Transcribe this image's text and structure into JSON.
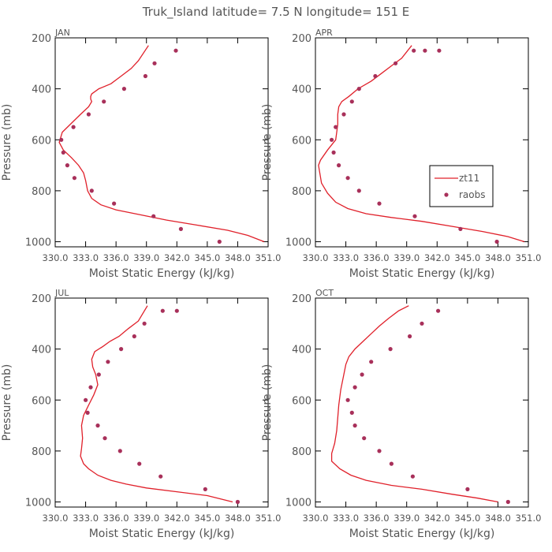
{
  "title": "Truk_Island  latitude= 7.5 N longitude= 151 E",
  "colors": {
    "model": "#e0202a",
    "obs": "#a8305a",
    "frame": "#000000",
    "text": "#555555"
  },
  "chart_data": [
    {
      "type": "line",
      "panel": "JAN",
      "xlabel": "Moist Static Energy (kJ/kg)",
      "ylabel": "Pressure (mb)",
      "xlim": [
        330.0,
        351.0
      ],
      "ylim": [
        1020,
        200
      ],
      "xticks": [
        "330.0",
        "333.0",
        "336.0",
        "339.0",
        "342.0",
        "345.0",
        "348.0",
        "351.0"
      ],
      "yticks": [
        200,
        400,
        600,
        800,
        1000
      ],
      "legend": null,
      "series": [
        {
          "name": "zt11",
          "style": "line",
          "x": [
            350.6,
            349.0,
            347.0,
            344.0,
            341.0,
            338.5,
            336.0,
            334.5,
            333.6,
            333.2,
            333.0,
            332.8,
            332.3,
            331.6,
            330.8,
            330.4,
            330.7,
            332.5,
            333.3,
            333.6,
            333.5,
            333.5,
            333.6,
            334.3,
            335.5,
            336.5,
            337.5,
            338.2,
            339.2
          ],
          "y": [
            1000,
            975,
            955,
            935,
            915,
            895,
            875,
            855,
            830,
            800,
            760,
            730,
            700,
            670,
            640,
            610,
            570,
            500,
            470,
            450,
            440,
            430,
            420,
            400,
            380,
            350,
            320,
            290,
            230
          ]
        },
        {
          "name": "raobs",
          "style": "markers",
          "x": [
            346.2,
            342.4,
            339.7,
            335.8,
            333.6,
            331.9,
            331.2,
            330.8,
            330.6,
            331.8,
            333.3,
            334.8,
            336.8,
            338.9,
            339.8,
            341.9
          ],
          "y": [
            1000,
            950,
            900,
            850,
            800,
            750,
            700,
            650,
            600,
            550,
            500,
            450,
            400,
            350,
            300,
            250
          ]
        }
      ]
    },
    {
      "type": "line",
      "panel": "APR",
      "xlabel": "Moist Static Energy (kJ/kg)",
      "ylabel": "Pressure (mb)",
      "xlim": [
        330.0,
        351.0
      ],
      "ylim": [
        1020,
        200
      ],
      "xticks": [
        "330.0",
        "333.0",
        "336.0",
        "339.0",
        "342.0",
        "345.0",
        "348.0",
        "351.0"
      ],
      "yticks": [
        200,
        400,
        600,
        800,
        1000
      ],
      "legend": "right",
      "series": [
        {
          "name": "zt11",
          "style": "line",
          "x": [
            350.6,
            349.0,
            346.5,
            343.5,
            340.5,
            337.5,
            335.0,
            333.2,
            332.0,
            331.2,
            330.6,
            330.3,
            330.5,
            331.2,
            332.0,
            332.2,
            332.2,
            332.3,
            332.6,
            333.3,
            334.2,
            335.5,
            336.5,
            337.5,
            338.5,
            339.5
          ],
          "y": [
            1000,
            980,
            960,
            940,
            920,
            905,
            890,
            870,
            845,
            810,
            770,
            700,
            680,
            640,
            600,
            540,
            500,
            470,
            450,
            430,
            400,
            370,
            340,
            310,
            280,
            230
          ]
        },
        {
          "name": "raobs",
          "style": "markers",
          "x": [
            347.9,
            344.3,
            339.8,
            336.3,
            334.3,
            333.2,
            332.3,
            331.8,
            331.6,
            332.0,
            332.8,
            333.6,
            334.3,
            335.9,
            337.9,
            339.7,
            340.8,
            342.2
          ],
          "y": [
            1000,
            950,
            900,
            850,
            800,
            750,
            700,
            650,
            600,
            550,
            500,
            450,
            400,
            350,
            300,
            250,
            250,
            250
          ]
        }
      ]
    },
    {
      "type": "line",
      "panel": "JUL",
      "xlabel": "Moist Static Energy (kJ/kg)",
      "ylabel": "Pressure (mb)",
      "xlim": [
        330.0,
        351.0
      ],
      "ylim": [
        1020,
        200
      ],
      "xticks": [
        "330.0",
        "333.0",
        "336.0",
        "339.0",
        "342.0",
        "345.0",
        "348.0",
        "351.0"
      ],
      "yticks": [
        200,
        400,
        600,
        800,
        1000
      ],
      "legend": null,
      "series": [
        {
          "name": "zt11",
          "style": "line",
          "x": [
            347.5,
            345.0,
            342.0,
            339.0,
            337.0,
            335.5,
            334.2,
            333.3,
            332.8,
            332.5,
            332.6,
            332.7,
            332.6,
            332.8,
            333.3,
            333.8,
            334.2,
            334.0,
            333.7,
            333.6,
            333.9,
            334.7,
            335.4,
            336.3,
            337.2,
            338.2,
            339.1
          ],
          "y": [
            1000,
            975,
            960,
            945,
            930,
            915,
            895,
            870,
            850,
            820,
            790,
            750,
            700,
            660,
            620,
            580,
            540,
            500,
            470,
            440,
            410,
            390,
            370,
            350,
            320,
            290,
            230
          ]
        },
        {
          "name": "raobs",
          "style": "markers",
          "x": [
            348.0,
            344.8,
            340.4,
            338.3,
            336.4,
            334.9,
            334.2,
            333.2,
            333.0,
            333.5,
            334.3,
            335.2,
            336.5,
            337.8,
            338.8,
            340.6,
            342.0
          ],
          "y": [
            1000,
            950,
            900,
            850,
            800,
            750,
            700,
            650,
            600,
            550,
            500,
            450,
            400,
            350,
            300,
            250,
            250
          ]
        }
      ]
    },
    {
      "type": "line",
      "panel": "OCT",
      "xlabel": "Moist Static Energy (kJ/kg)",
      "ylabel": "Pressure (mb)",
      "xlim": [
        330.0,
        351.0
      ],
      "ylim": [
        1020,
        200
      ],
      "xticks": [
        "330.0",
        "333.0",
        "336.0",
        "339.0",
        "342.0",
        "345.0",
        "348.0",
        "351.0"
      ],
      "yticks": [
        200,
        400,
        600,
        800,
        1000
      ],
      "legend": null,
      "series": [
        {
          "name": "zt11",
          "style": "line",
          "x": [
            348.0,
            346.0,
            343.5,
            340.5,
            337.5,
            335.0,
            333.5,
            332.4,
            331.6,
            331.6,
            331.9,
            332.1,
            332.2,
            332.3,
            332.5,
            332.8,
            333.0,
            333.3,
            333.9,
            334.7,
            335.5,
            336.3,
            337.2,
            338.2,
            339.2
          ],
          "y": [
            1000,
            985,
            970,
            950,
            935,
            915,
            895,
            870,
            840,
            810,
            770,
            720,
            670,
            620,
            560,
            500,
            460,
            430,
            400,
            370,
            340,
            310,
            280,
            250,
            230
          ]
        },
        {
          "name": "raobs",
          "style": "markers",
          "x": [
            349.0,
            345.0,
            339.6,
            337.5,
            336.3,
            334.8,
            333.9,
            333.6,
            333.2,
            333.9,
            334.6,
            335.5,
            337.4,
            339.3,
            340.5,
            342.1
          ],
          "y": [
            1000,
            950,
            900,
            850,
            800,
            750,
            700,
            650,
            600,
            550,
            500,
            450,
            400,
            350,
            300,
            250
          ]
        }
      ]
    }
  ]
}
